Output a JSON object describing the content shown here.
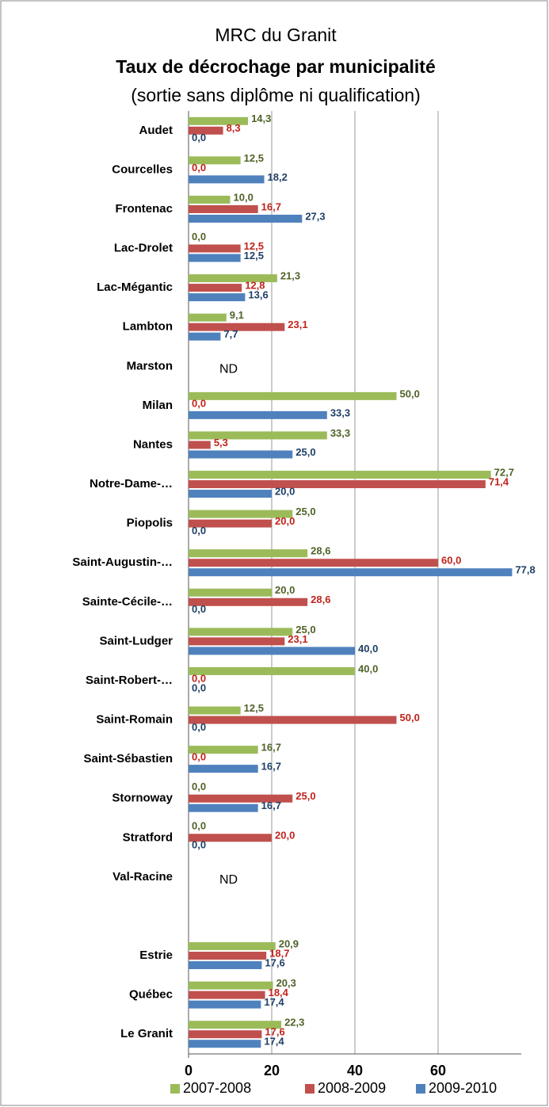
{
  "chart_data": {
    "type": "barh",
    "title": "MRC du Granit",
    "subtitle": "Taux de décrochage par municipalité",
    "subtitle2": "(sortie sans diplôme ni qualification)",
    "categories": [
      "Audet",
      "Courcelles",
      "Frontenac",
      "Lac-Drolet",
      "Lac-Mégantic",
      "Lambton",
      "Marston",
      "Milan",
      "Nantes",
      "Notre-Dame-…",
      "Piopolis",
      "Saint-Augustin-…",
      "Sainte-Cécile-…",
      "Saint-Ludger",
      "Saint-Robert-…",
      "Saint-Romain",
      "Saint-Sébastien",
      "Stornoway",
      "Stratford",
      "Val-Racine",
      null,
      "Estrie",
      "Québec",
      "Le Granit"
    ],
    "notes": [
      null,
      null,
      null,
      null,
      null,
      null,
      "ND",
      null,
      null,
      null,
      null,
      null,
      null,
      null,
      null,
      null,
      null,
      null,
      null,
      "ND",
      null,
      null,
      null,
      null
    ],
    "series": [
      {
        "name": "2007-2008",
        "color": "#9bbb59",
        "label_color": "#4f6228",
        "values": [
          14.3,
          12.5,
          10.0,
          0.0,
          21.3,
          9.1,
          null,
          50.0,
          33.3,
          72.7,
          25.0,
          28.6,
          20.0,
          25.0,
          40.0,
          12.5,
          16.7,
          0.0,
          0.0,
          null,
          null,
          20.9,
          20.3,
          22.3
        ],
        "value_labels": [
          "14,3",
          "12,5",
          "10,0",
          "0,0",
          "21,3",
          "9,1",
          null,
          "50,0",
          "33,3",
          "72,7",
          "25,0",
          "28,6",
          "20,0",
          "25,0",
          "40,0",
          "12,5",
          "16,7",
          "0,0",
          "0,0",
          null,
          null,
          "20,9",
          "20,3",
          "22,3"
        ]
      },
      {
        "name": "2008-2009",
        "color": "#c0504d",
        "label_color": "#c0241c",
        "values": [
          8.3,
          0.0,
          16.7,
          12.5,
          12.8,
          23.1,
          null,
          0.0,
          5.3,
          71.4,
          20.0,
          60.0,
          28.6,
          23.1,
          0.0,
          50.0,
          0.0,
          25.0,
          20.0,
          null,
          null,
          18.7,
          18.4,
          17.6
        ],
        "value_labels": [
          "8,3",
          "0,0",
          "16,7",
          "12,5",
          "12,8",
          "23,1",
          null,
          "0,0",
          "5,3",
          "71,4",
          "20,0",
          "60,0",
          "28,6",
          "23,1",
          "0,0",
          "50,0",
          "0,0",
          "25,0",
          "20,0",
          null,
          null,
          "18,7",
          "18,4",
          "17,6"
        ]
      },
      {
        "name": "2009-2010",
        "color": "#4f81bd",
        "label_color": "#1f3f66",
        "values": [
          0.0,
          18.2,
          27.3,
          12.5,
          13.6,
          7.7,
          null,
          33.3,
          25.0,
          20.0,
          0.0,
          77.8,
          0.0,
          40.0,
          0.0,
          0.0,
          16.7,
          16.7,
          0.0,
          null,
          null,
          17.6,
          17.4,
          17.4
        ],
        "value_labels": [
          "0,0",
          "18,2",
          "27,3",
          "12,5",
          "13,6",
          "7,7",
          null,
          "33,3",
          "25,0",
          "20,0",
          "0,0",
          "77,8",
          "0,0",
          "40,0",
          "0,0",
          "0,0",
          "16,7",
          "16,7",
          "0,0",
          null,
          null,
          "17,6",
          "17,4",
          "17,4"
        ]
      }
    ],
    "xlim": [
      0,
      80
    ],
    "xticks": [
      0,
      20,
      40,
      60
    ],
    "grid": true,
    "legend": "bottom"
  }
}
